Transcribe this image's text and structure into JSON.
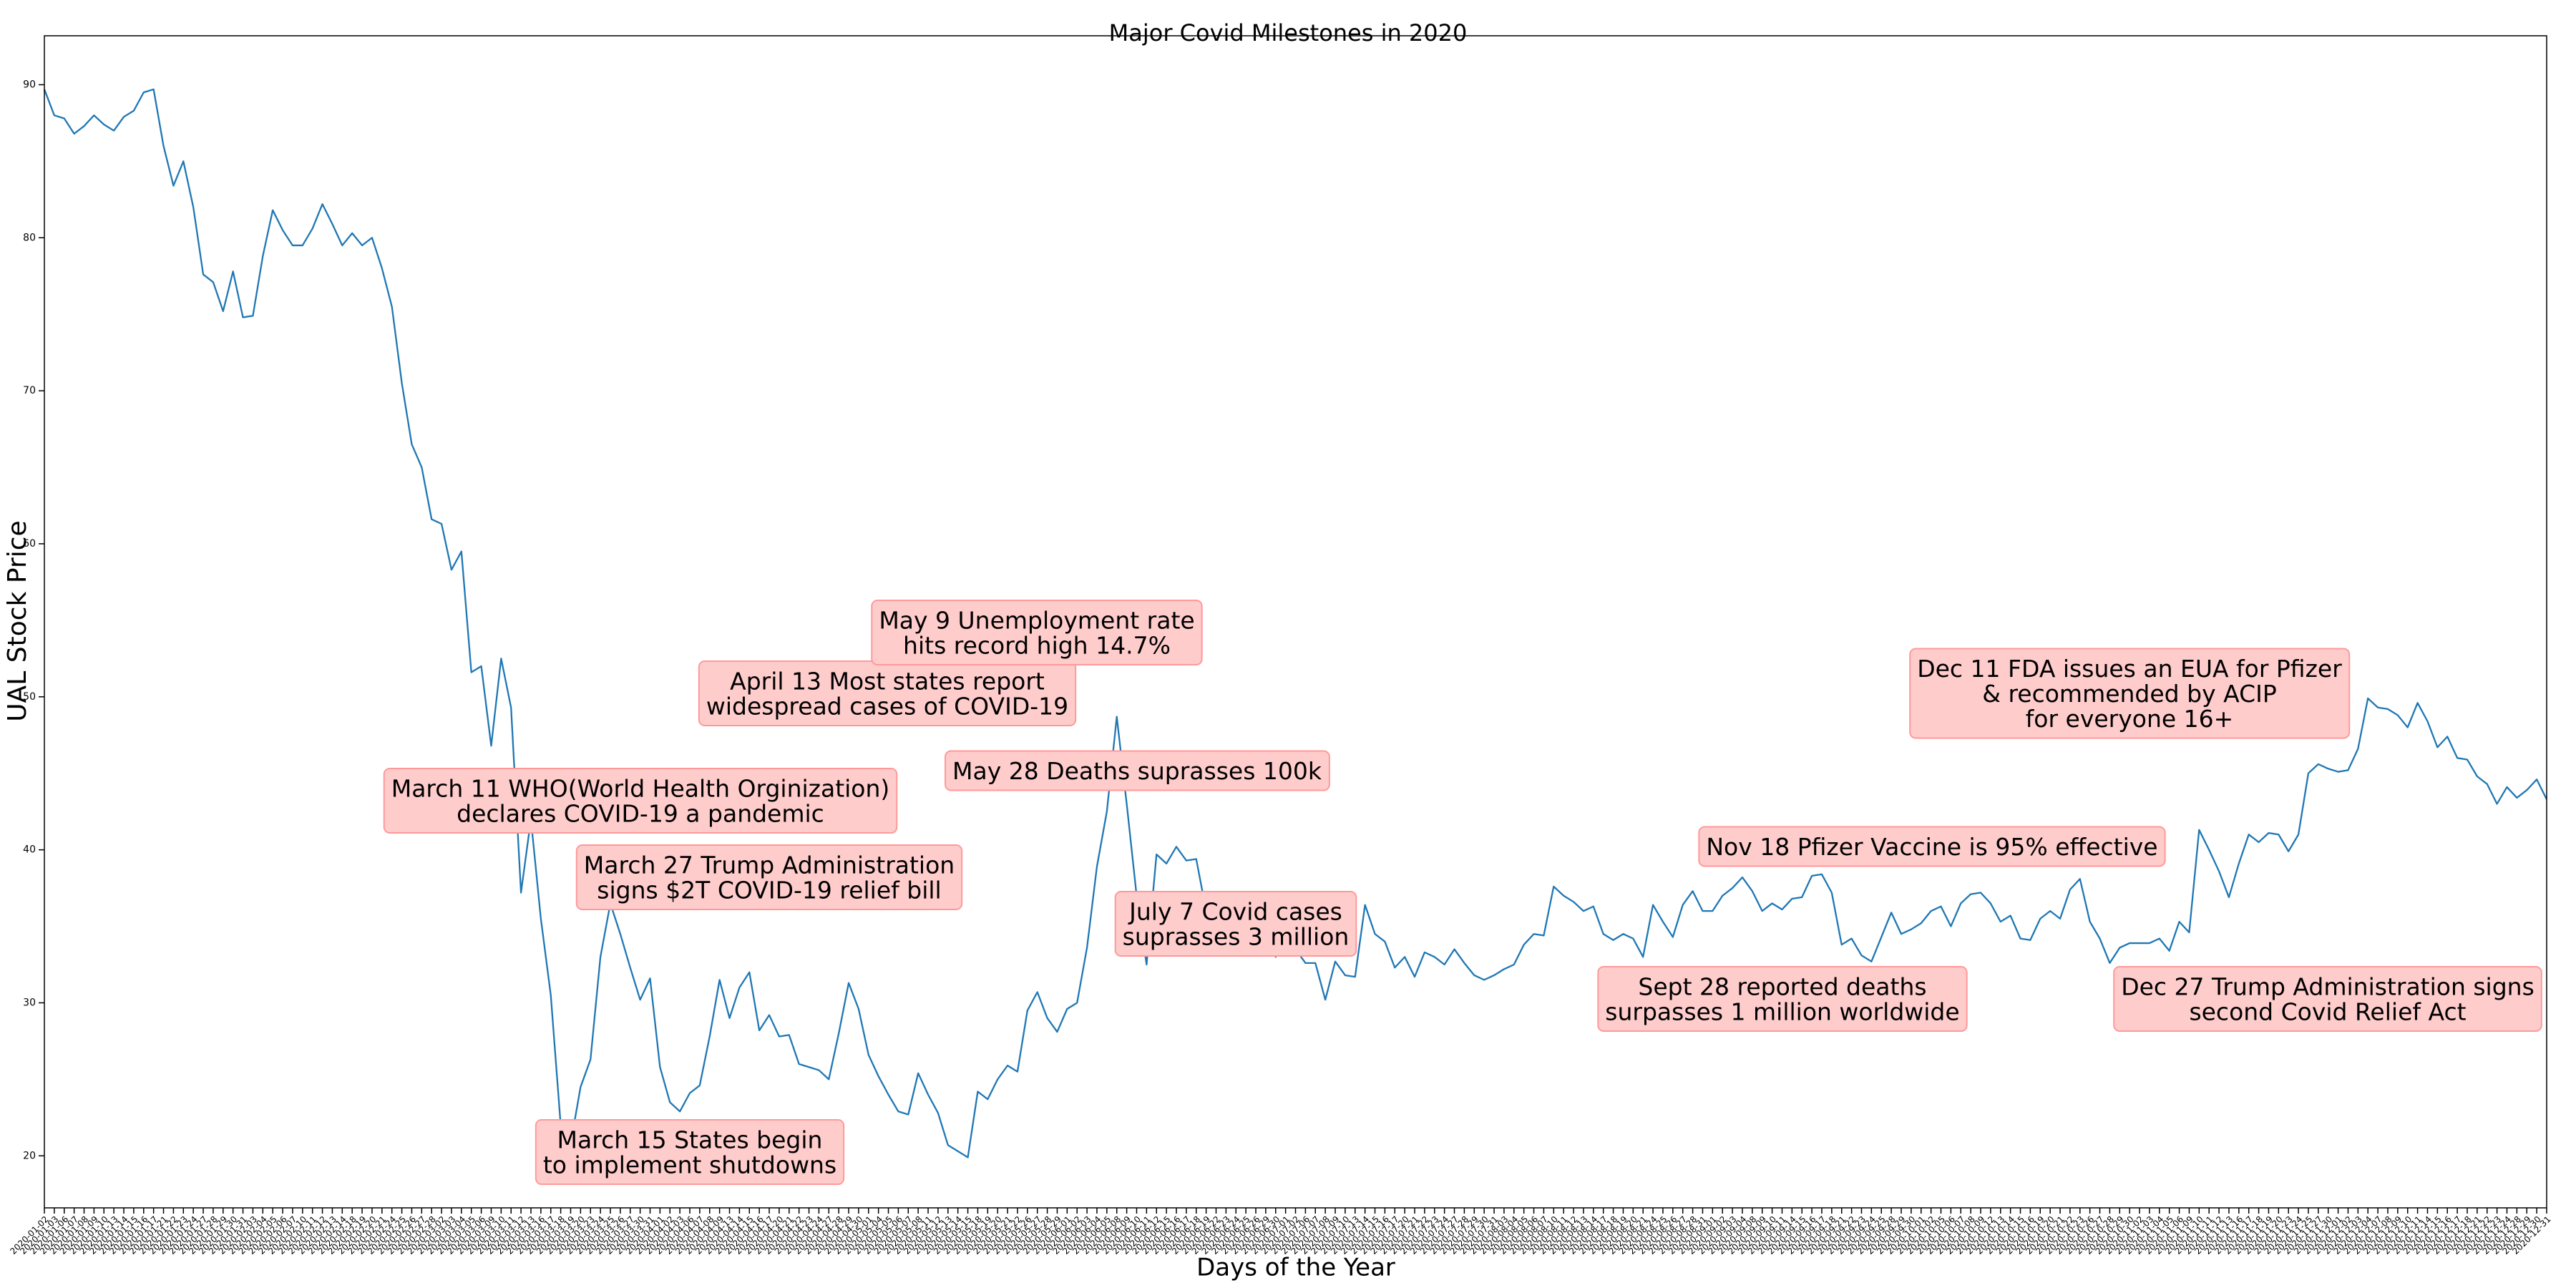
{
  "chart_data": {
    "type": "line",
    "title": "Major Covid Milestones in 2020",
    "x_label": "Days of the Year",
    "y_label": "UAL Stock Price",
    "color": "#1f77b4",
    "ylim": [
      16.6,
      93.2
    ],
    "yticks": [
      20,
      30,
      40,
      50,
      60,
      70,
      80,
      90
    ],
    "categories": [
      "2020-01-02",
      "2020-01-03",
      "2020-01-06",
      "2020-01-07",
      "2020-01-08",
      "2020-01-09",
      "2020-01-10",
      "2020-01-13",
      "2020-01-14",
      "2020-01-15",
      "2020-01-16",
      "2020-01-17",
      "2020-01-21",
      "2020-01-22",
      "2020-01-23",
      "2020-01-24",
      "2020-01-27",
      "2020-01-28",
      "2020-01-29",
      "2020-01-30",
      "2020-01-31",
      "2020-02-03",
      "2020-02-04",
      "2020-02-05",
      "2020-02-06",
      "2020-02-07",
      "2020-02-10",
      "2020-02-11",
      "2020-02-12",
      "2020-02-13",
      "2020-02-14",
      "2020-02-18",
      "2020-02-19",
      "2020-02-20",
      "2020-02-21",
      "2020-02-24",
      "2020-02-25",
      "2020-02-26",
      "2020-02-27",
      "2020-02-28",
      "2020-03-02",
      "2020-03-03",
      "2020-03-04",
      "2020-03-05",
      "2020-03-06",
      "2020-03-09",
      "2020-03-10",
      "2020-03-11",
      "2020-03-12",
      "2020-03-13",
      "2020-03-16",
      "2020-03-17",
      "2020-03-18",
      "2020-03-19",
      "2020-03-20",
      "2020-03-23",
      "2020-03-24",
      "2020-03-25",
      "2020-03-26",
      "2020-03-27",
      "2020-03-30",
      "2020-03-31",
      "2020-04-01",
      "2020-04-02",
      "2020-04-03",
      "2020-04-06",
      "2020-04-07",
      "2020-04-08",
      "2020-04-09",
      "2020-04-13",
      "2020-04-14",
      "2020-04-15",
      "2020-04-16",
      "2020-04-17",
      "2020-04-20",
      "2020-04-21",
      "2020-04-22",
      "2020-04-23",
      "2020-04-24",
      "2020-04-27",
      "2020-04-28",
      "2020-04-29",
      "2020-04-30",
      "2020-05-01",
      "2020-05-04",
      "2020-05-05",
      "2020-05-06",
      "2020-05-07",
      "2020-05-08",
      "2020-05-11",
      "2020-05-12",
      "2020-05-13",
      "2020-05-14",
      "2020-05-15",
      "2020-05-18",
      "2020-05-19",
      "2020-05-20",
      "2020-05-21",
      "2020-05-22",
      "2020-05-26",
      "2020-05-27",
      "2020-05-28",
      "2020-05-29",
      "2020-06-01",
      "2020-06-02",
      "2020-06-03",
      "2020-06-04",
      "2020-06-05",
      "2020-06-08",
      "2020-06-09",
      "2020-06-10",
      "2020-06-11",
      "2020-06-12",
      "2020-06-15",
      "2020-06-16",
      "2020-06-17",
      "2020-06-18",
      "2020-06-19",
      "2020-06-22",
      "2020-06-23",
      "2020-06-24",
      "2020-06-25",
      "2020-06-26",
      "2020-06-29",
      "2020-06-30",
      "2020-07-01",
      "2020-07-02",
      "2020-07-06",
      "2020-07-07",
      "2020-07-08",
      "2020-07-09",
      "2020-07-10",
      "2020-07-13",
      "2020-07-14",
      "2020-07-15",
      "2020-07-16",
      "2020-07-17",
      "2020-07-20",
      "2020-07-21",
      "2020-07-22",
      "2020-07-23",
      "2020-07-24",
      "2020-07-27",
      "2020-07-28",
      "2020-07-29",
      "2020-07-30",
      "2020-07-31",
      "2020-08-03",
      "2020-08-04",
      "2020-08-05",
      "2020-08-06",
      "2020-08-07",
      "2020-08-10",
      "2020-08-11",
      "2020-08-12",
      "2020-08-13",
      "2020-08-14",
      "2020-08-17",
      "2020-08-18",
      "2020-08-19",
      "2020-08-20",
      "2020-08-21",
      "2020-08-24",
      "2020-08-25",
      "2020-08-26",
      "2020-08-27",
      "2020-08-28",
      "2020-08-31",
      "2020-09-01",
      "2020-09-02",
      "2020-09-03",
      "2020-09-04",
      "2020-09-08",
      "2020-09-09",
      "2020-09-10",
      "2020-09-11",
      "2020-09-14",
      "2020-09-15",
      "2020-09-16",
      "2020-09-17",
      "2020-09-18",
      "2020-09-21",
      "2020-09-22",
      "2020-09-23",
      "2020-09-24",
      "2020-09-25",
      "2020-09-28",
      "2020-09-29",
      "2020-09-30",
      "2020-10-01",
      "2020-10-02",
      "2020-10-05",
      "2020-10-06",
      "2020-10-07",
      "2020-10-08",
      "2020-10-09",
      "2020-10-12",
      "2020-10-13",
      "2020-10-14",
      "2020-10-15",
      "2020-10-16",
      "2020-10-19",
      "2020-10-20",
      "2020-10-21",
      "2020-10-22",
      "2020-10-23",
      "2020-10-26",
      "2020-10-27",
      "2020-10-28",
      "2020-10-29",
      "2020-10-30",
      "2020-11-02",
      "2020-11-03",
      "2020-11-04",
      "2020-11-05",
      "2020-11-06",
      "2020-11-09",
      "2020-11-10",
      "2020-11-11",
      "2020-11-12",
      "2020-11-13",
      "2020-11-16",
      "2020-11-17",
      "2020-11-18",
      "2020-11-19",
      "2020-11-20",
      "2020-11-23",
      "2020-11-24",
      "2020-11-25",
      "2020-11-27",
      "2020-11-30",
      "2020-12-01",
      "2020-12-02",
      "2020-12-03",
      "2020-12-04",
      "2020-12-07",
      "2020-12-08",
      "2020-12-09",
      "2020-12-10",
      "2020-12-11",
      "2020-12-14",
      "2020-12-15",
      "2020-12-16",
      "2020-12-17",
      "2020-12-18",
      "2020-12-21",
      "2020-12-22",
      "2020-12-23",
      "2020-12-24",
      "2020-12-28",
      "2020-12-29",
      "2020-12-30",
      "2020-12-31"
    ],
    "values": [
      89.7,
      88,
      87.8,
      86.8,
      87.3,
      88,
      87.4,
      87,
      87.9,
      88.3,
      89.5,
      89.7,
      86,
      83.4,
      85,
      82,
      77.6,
      77.1,
      75.2,
      77.8,
      74.8,
      74.9,
      78.8,
      81.8,
      80.5,
      79.5,
      79.5,
      80.6,
      82.2,
      80.9,
      79.5,
      80.3,
      79.5,
      80,
      78,
      75.5,
      70.5,
      66.5,
      65,
      61.6,
      61.3,
      58.3,
      59.5,
      51.6,
      52,
      46.8,
      52.5,
      49.3,
      37.2,
      42,
      35.5,
      30.5,
      22,
      20.8,
      24.5,
      26.3,
      33,
      36.5,
      34.5,
      32.3,
      30.2,
      31.6,
      25.8,
      23.5,
      22.9,
      24.1,
      24.6,
      27.8,
      31.5,
      29,
      31,
      32,
      28.2,
      29.2,
      27.8,
      27.9,
      26,
      25.8,
      25.6,
      25,
      28,
      31.3,
      29.6,
      26.6,
      25.2,
      24,
      22.9,
      22.7,
      25.4,
      24,
      22.8,
      20.7,
      20.3,
      19.9,
      24.2,
      23.7,
      25,
      25.9,
      25.5,
      29.5,
      30.7,
      29,
      28.1,
      29.6,
      30,
      33.6,
      38.9,
      42.5,
      48.7,
      43,
      37,
      32.5,
      39.7,
      39.1,
      40.2,
      39.3,
      39.4,
      36,
      34.5,
      33.5,
      33.2,
      34.5,
      33.4,
      34.5,
      33,
      34.5,
      33.5,
      32.6,
      32.6,
      30.2,
      32.7,
      31.8,
      31.7,
      36.4,
      34.5,
      34,
      32.3,
      33,
      31.7,
      33.3,
      33,
      32.5,
      33.5,
      32.6,
      31.8,
      31.5,
      31.8,
      32.2,
      32.5,
      33.8,
      34.5,
      34.4,
      37.6,
      37,
      36.6,
      36,
      36.3,
      34.5,
      34.1,
      34.5,
      34.2,
      33,
      36.4,
      35.3,
      34.3,
      36.4,
      37.3,
      36,
      36,
      37,
      37.5,
      38.2,
      37.3,
      36,
      36.5,
      36.1,
      36.8,
      36.9,
      38.3,
      38.4,
      37.2,
      33.8,
      34.2,
      33.1,
      32.7,
      34.3,
      35.9,
      34.5,
      34.8,
      35.2,
      36,
      36.3,
      35,
      36.5,
      37.1,
      37.2,
      36.5,
      35.3,
      35.7,
      34.2,
      34.1,
      35.5,
      36,
      35.5,
      37.4,
      38.1,
      35.3,
      34.2,
      32.6,
      33.6,
      33.9,
      33.9,
      33.9,
      34.2,
      33.4,
      35.3,
      34.6,
      41.3,
      40,
      38.6,
      36.9,
      39.1,
      41,
      40.5,
      41.1,
      41,
      39.9,
      41,
      45,
      45.6,
      45.3,
      45.1,
      45.2,
      46.6,
      49.9,
      49.3,
      49.2,
      48.8,
      48,
      49.6,
      48.4,
      46.7,
      47.4,
      46,
      45.9,
      44.8,
      44.3,
      43,
      44.1,
      43.4,
      43.9,
      44.6,
      43.3
    ],
    "annotations": [
      "March 11 WHO(World Health Orginization)\ndeclares COVID-19 a pandemic",
      "March 15 States begin\nto implement shutdowns",
      "March 27 Trump Administration\nsigns $2T COVID-19 relief bill",
      "April 13 Most states report\nwidespread cases of COVID-19",
      "May 9 Unemployment rate\nhits record high 14.7%",
      "May 28 Deaths suprasses 100k",
      "July 7 Covid cases\nsuprasses 3 million",
      "Sept 28 reported deaths\nsurpasses 1 million worldwide",
      "Nov 18 Pfizer Vaccine is 95% effective",
      "Dec 11 FDA issues an EUA for Pfizer\n& recommended by ACIP\nfor everyone 16+",
      "Dec 27 Trump Administration signs\nsecond Covid Relief Act"
    ]
  }
}
